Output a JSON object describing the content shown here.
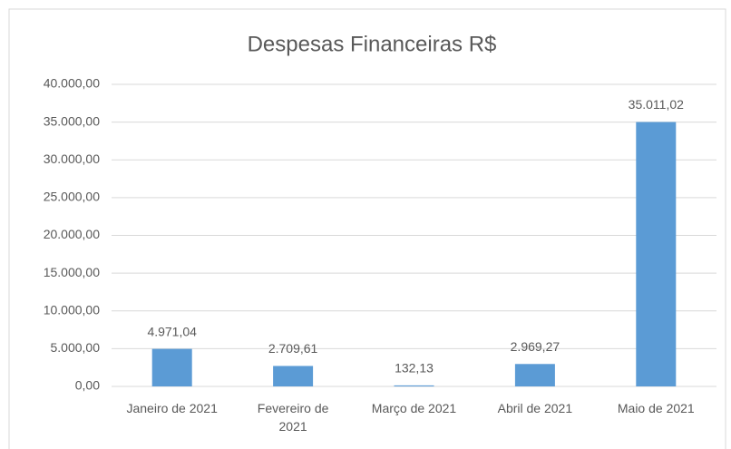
{
  "chart_data": {
    "type": "bar",
    "title": "Despesas Financeiras R$",
    "categories": [
      "Janeiro de 2021",
      "Fevereiro de 2021",
      "Março de 2021",
      "Abril de 2021",
      "Maio de 2021"
    ],
    "values": [
      4971.04,
      2709.61,
      132.13,
      2969.27,
      35011.02
    ],
    "value_labels": [
      "4.971,04",
      "2.709,61",
      "132,13",
      "2.969,27",
      "35.011,02"
    ],
    "color": "#5b9bd5",
    "ylim": [
      0,
      40000
    ],
    "yticks": [
      {
        "value": 0,
        "label": "0,00"
      },
      {
        "value": 5000,
        "label": "5.000,00"
      },
      {
        "value": 10000,
        "label": "10.000,00"
      },
      {
        "value": 15000,
        "label": "15.000,00"
      },
      {
        "value": 20000,
        "label": "20.000,00"
      },
      {
        "value": 25000,
        "label": "25.000,00"
      },
      {
        "value": 30000,
        "label": "30.000,00"
      },
      {
        "value": 35000,
        "label": "35.000,00"
      },
      {
        "value": 40000,
        "label": "40.000,00"
      }
    ],
    "grid": true
  }
}
